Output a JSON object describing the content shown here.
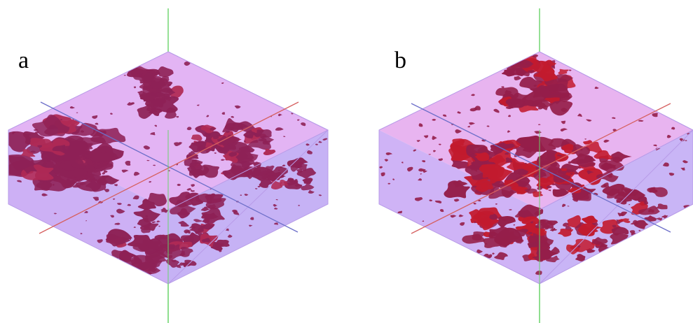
{
  "panels": [
    {
      "id": "a",
      "label": "a",
      "colors": {
        "top_face": "#e3b4f4",
        "left_face": "#cdb0f5",
        "right_face": "#c6b2f5",
        "blob": "#8e2156",
        "blob_highlight": "#b02a55",
        "axis_vertical": "#6ad36a",
        "axis_blue": "#6d6fc9",
        "axis_red": "#d66060"
      }
    },
    {
      "id": "b",
      "label": "b",
      "colors": {
        "top_face": "#e8b4f0",
        "left_face": "#cfb3f6",
        "right_face": "#c9b5f6",
        "blob": "#951e4a",
        "blob_highlight": "#c21a2e",
        "axis_vertical": "#6ad36a",
        "axis_blue": "#6d6fc9",
        "axis_red": "#d66060"
      }
    }
  ]
}
